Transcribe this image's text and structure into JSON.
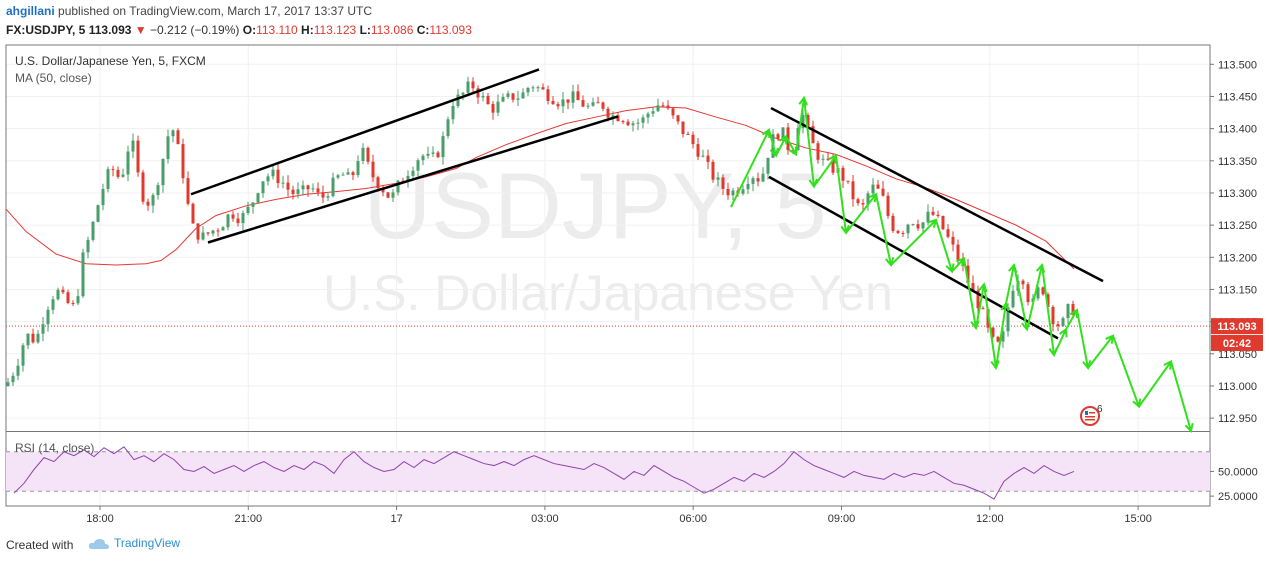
{
  "header": {
    "author": "ahgillani",
    "published": "published on TradingView.com, March 17, 2017 13:37 UTC",
    "symbol": "FX:USDJPY, 5",
    "last": "113.093",
    "change": "−0.212 (−0.19%)",
    "open_label": "O:",
    "open": "113.110",
    "high_label": "H:",
    "high": "113.123",
    "low_label": "L:",
    "low": "113.086",
    "close_label": "C:",
    "close": "113.093"
  },
  "legend": {
    "title": "U.S. Dollar/Japanese Yen, 5, FXCM",
    "ma": "MA (50, close)"
  },
  "watermark": {
    "line1": "USDJPY, 5",
    "line2": "U.S. Dollar/Japanese Yen"
  },
  "price_tag": {
    "value": "113.093",
    "countdown": "02:42"
  },
  "alert_badge": "6",
  "rsi_label": "RSI (14, close)",
  "footer": {
    "created_with": "Created with",
    "brand": "TradingView"
  },
  "colors": {
    "up": "#4a9e6a",
    "down": "#e0392e",
    "ma": "#e53935",
    "rsi": "#8e44ad",
    "channel": "#000000",
    "projection": "#33e01d"
  },
  "chart_data": {
    "type": "candlestick",
    "symbol": "USDJPY",
    "timeframe": "5",
    "x_ticks": [
      "18:00",
      "21:00",
      "17",
      "03:00",
      "06:00",
      "09:00",
      "12:00",
      "15:00"
    ],
    "y_ticks": [
      "113.500",
      "113.450",
      "113.400",
      "113.350",
      "113.300",
      "113.250",
      "113.200",
      "113.150",
      "113.100",
      "113.050",
      "113.000",
      "112.950"
    ],
    "ylim": [
      112.93,
      113.53
    ],
    "last_price": 113.093,
    "ma_period": 50,
    "ma_points": [
      [
        0,
        113.275
      ],
      [
        20,
        113.24
      ],
      [
        50,
        113.205
      ],
      [
        80,
        113.19
      ],
      [
        110,
        113.188
      ],
      [
        140,
        113.19
      ],
      [
        155,
        113.195
      ],
      [
        170,
        113.212
      ],
      [
        190,
        113.245
      ],
      [
        210,
        113.265
      ],
      [
        240,
        113.28
      ],
      [
        270,
        113.29
      ],
      [
        300,
        113.298
      ],
      [
        330,
        113.302
      ],
      [
        360,
        113.307
      ],
      [
        390,
        113.315
      ],
      [
        420,
        113.325
      ],
      [
        450,
        113.338
      ],
      [
        470,
        113.355
      ],
      [
        500,
        113.375
      ],
      [
        530,
        113.392
      ],
      [
        560,
        113.408
      ],
      [
        590,
        113.418
      ],
      [
        620,
        113.428
      ],
      [
        650,
        113.434
      ],
      [
        680,
        113.432
      ],
      [
        710,
        113.418
      ],
      [
        740,
        113.405
      ],
      [
        770,
        113.385
      ],
      [
        800,
        113.37
      ],
      [
        830,
        113.36
      ],
      [
        860,
        113.342
      ],
      [
        890,
        113.322
      ],
      [
        920,
        113.308
      ],
      [
        950,
        113.29
      ],
      [
        980,
        113.27
      ],
      [
        1010,
        113.25
      ],
      [
        1040,
        113.225
      ],
      [
        1068,
        113.182
      ]
    ],
    "close_path": [
      [
        0,
        113.0
      ],
      [
        10,
        113.03
      ],
      [
        20,
        113.08
      ],
      [
        30,
        113.07
      ],
      [
        40,
        113.12
      ],
      [
        50,
        113.15
      ],
      [
        60,
        113.13
      ],
      [
        70,
        113.12
      ],
      [
        75,
        113.19
      ],
      [
        85,
        113.24
      ],
      [
        95,
        113.3
      ],
      [
        105,
        113.34
      ],
      [
        115,
        113.32
      ],
      [
        125,
        113.39
      ],
      [
        135,
        113.3
      ],
      [
        145,
        113.28
      ],
      [
        155,
        113.34
      ],
      [
        165,
        113.41
      ],
      [
        175,
        113.35
      ],
      [
        185,
        113.25
      ],
      [
        195,
        113.23
      ],
      [
        205,
        113.24
      ],
      [
        215,
        113.25
      ],
      [
        225,
        113.27
      ],
      [
        235,
        113.26
      ],
      [
        245,
        113.28
      ],
      [
        255,
        113.32
      ],
      [
        265,
        113.33
      ],
      [
        275,
        113.32
      ],
      [
        285,
        113.3
      ],
      [
        295,
        113.3
      ],
      [
        305,
        113.31
      ],
      [
        315,
        113.29
      ],
      [
        325,
        113.31
      ],
      [
        335,
        113.33
      ],
      [
        345,
        113.32
      ],
      [
        355,
        113.37
      ],
      [
        365,
        113.33
      ],
      [
        375,
        113.31
      ],
      [
        385,
        113.29
      ],
      [
        395,
        113.32
      ],
      [
        405,
        113.34
      ],
      [
        415,
        113.36
      ],
      [
        425,
        113.35
      ],
      [
        435,
        113.37
      ],
      [
        445,
        113.44
      ],
      [
        455,
        113.45
      ],
      [
        465,
        113.47
      ],
      [
        475,
        113.45
      ],
      [
        485,
        113.43
      ],
      [
        495,
        113.44
      ],
      [
        505,
        113.45
      ],
      [
        515,
        113.45
      ],
      [
        525,
        113.47
      ],
      [
        535,
        113.46
      ],
      [
        545,
        113.45
      ],
      [
        555,
        113.44
      ],
      [
        565,
        113.45
      ],
      [
        575,
        113.44
      ],
      [
        585,
        113.43
      ],
      [
        595,
        113.44
      ],
      [
        605,
        113.42
      ],
      [
        615,
        113.42
      ],
      [
        625,
        113.41
      ],
      [
        635,
        113.41
      ],
      [
        645,
        113.43
      ],
      [
        655,
        113.44
      ],
      [
        665,
        113.42
      ],
      [
        675,
        113.4
      ],
      [
        685,
        113.38
      ],
      [
        695,
        113.36
      ],
      [
        705,
        113.33
      ],
      [
        715,
        113.31
      ],
      [
        725,
        113.3
      ],
      [
        735,
        113.31
      ],
      [
        745,
        113.33
      ],
      [
        755,
        113.32
      ],
      [
        765,
        113.38
      ],
      [
        775,
        113.4
      ],
      [
        785,
        113.36
      ],
      [
        795,
        113.43
      ],
      [
        805,
        113.38
      ],
      [
        815,
        113.35
      ],
      [
        825,
        113.34
      ],
      [
        835,
        113.33
      ],
      [
        845,
        113.3
      ],
      [
        855,
        113.27
      ],
      [
        865,
        113.31
      ],
      [
        875,
        113.3
      ],
      [
        885,
        113.25
      ],
      [
        895,
        113.24
      ],
      [
        905,
        113.26
      ],
      [
        915,
        113.25
      ],
      [
        925,
        113.27
      ],
      [
        935,
        113.25
      ],
      [
        945,
        113.22
      ],
      [
        955,
        113.19
      ],
      [
        965,
        113.15
      ],
      [
        975,
        113.12
      ],
      [
        985,
        113.07
      ],
      [
        995,
        113.06
      ],
      [
        1005,
        113.15
      ],
      [
        1015,
        113.18
      ],
      [
        1025,
        113.12
      ],
      [
        1035,
        113.16
      ],
      [
        1045,
        113.11
      ],
      [
        1055,
        113.09
      ],
      [
        1065,
        113.13
      ],
      [
        1072,
        113.093
      ]
    ],
    "annotations": {
      "channel_lines": [
        [
          [
            185,
            113.298
          ],
          [
            533,
            113.492
          ]
        ],
        [
          [
            202,
            113.223
          ],
          [
            612,
            113.419
          ]
        ],
        [
          [
            765,
            113.432
          ],
          [
            1097,
            113.163
          ]
        ],
        [
          [
            763,
            113.325
          ],
          [
            1052,
            113.074
          ]
        ]
      ],
      "projection_path": [
        [
          725,
          113.278
        ],
        [
          763,
          113.398
        ],
        [
          770,
          113.358
        ],
        [
          780,
          113.388
        ],
        [
          790,
          113.36
        ],
        [
          798,
          113.448
        ],
        [
          808,
          113.31
        ],
        [
          830,
          113.358
        ],
        [
          840,
          113.238
        ],
        [
          870,
          113.298
        ],
        [
          885,
          113.188
        ],
        [
          930,
          113.258
        ],
        [
          946,
          113.178
        ],
        [
          958,
          113.198
        ],
        [
          970,
          113.09
        ],
        [
          978,
          113.158
        ],
        [
          990,
          113.028
        ],
        [
          1000,
          113.128
        ],
        [
          1008,
          113.188
        ],
        [
          1021,
          113.088
        ],
        [
          1036,
          113.188
        ],
        [
          1048,
          113.048
        ],
        [
          1060,
          113.088
        ],
        [
          1071,
          113.118
        ],
        [
          1082,
          113.028
        ],
        [
          1107,
          113.078
        ],
        [
          1133,
          112.968
        ],
        [
          1165,
          113.038
        ],
        [
          1185,
          112.93
        ]
      ]
    },
    "rsi": {
      "period": 14,
      "ylim": [
        15,
        90
      ],
      "y_ticks": [
        "50.0000",
        "25.0000"
      ],
      "bands": [
        70,
        30
      ],
      "points": [
        [
          8,
          28
        ],
        [
          18,
          38
        ],
        [
          28,
          52
        ],
        [
          38,
          64
        ],
        [
          48,
          60
        ],
        [
          58,
          70
        ],
        [
          68,
          66
        ],
        [
          78,
          72
        ],
        [
          88,
          65
        ],
        [
          98,
          74
        ],
        [
          108,
          68
        ],
        [
          118,
          75
        ],
        [
          128,
          62
        ],
        [
          138,
          66
        ],
        [
          148,
          60
        ],
        [
          158,
          68
        ],
        [
          168,
          62
        ],
        [
          178,
          52
        ],
        [
          188,
          50
        ],
        [
          198,
          55
        ],
        [
          208,
          48
        ],
        [
          218,
          52
        ],
        [
          228,
          56
        ],
        [
          238,
          50
        ],
        [
          248,
          56
        ],
        [
          258,
          60
        ],
        [
          268,
          54
        ],
        [
          278,
          50
        ],
        [
          288,
          56
        ],
        [
          298,
          52
        ],
        [
          308,
          60
        ],
        [
          318,
          56
        ],
        [
          328,
          48
        ],
        [
          338,
          62
        ],
        [
          348,
          70
        ],
        [
          358,
          60
        ],
        [
          368,
          54
        ],
        [
          378,
          50
        ],
        [
          388,
          52
        ],
        [
          398,
          60
        ],
        [
          408,
          54
        ],
        [
          418,
          62
        ],
        [
          428,
          58
        ],
        [
          438,
          64
        ],
        [
          448,
          70
        ],
        [
          458,
          66
        ],
        [
          468,
          62
        ],
        [
          478,
          58
        ],
        [
          488,
          56
        ],
        [
          498,
          60
        ],
        [
          508,
          56
        ],
        [
          518,
          62
        ],
        [
          528,
          66
        ],
        [
          538,
          62
        ],
        [
          548,
          58
        ],
        [
          558,
          56
        ],
        [
          568,
          54
        ],
        [
          578,
          52
        ],
        [
          588,
          58
        ],
        [
          598,
          54
        ],
        [
          608,
          48
        ],
        [
          618,
          42
        ],
        [
          628,
          50
        ],
        [
          638,
          46
        ],
        [
          648,
          56
        ],
        [
          658,
          50
        ],
        [
          668,
          44
        ],
        [
          678,
          40
        ],
        [
          688,
          34
        ],
        [
          698,
          28
        ],
        [
          708,
          32
        ],
        [
          718,
          38
        ],
        [
          728,
          44
        ],
        [
          738,
          40
        ],
        [
          748,
          48
        ],
        [
          758,
          44
        ],
        [
          768,
          50
        ],
        [
          778,
          58
        ],
        [
          788,
          70
        ],
        [
          798,
          62
        ],
        [
          808,
          56
        ],
        [
          818,
          52
        ],
        [
          828,
          48
        ],
        [
          838,
          44
        ],
        [
          848,
          50
        ],
        [
          858,
          46
        ],
        [
          868,
          44
        ],
        [
          878,
          42
        ],
        [
          888,
          48
        ],
        [
          898,
          44
        ],
        [
          908,
          48
        ],
        [
          918,
          46
        ],
        [
          928,
          50
        ],
        [
          938,
          44
        ],
        [
          948,
          38
        ],
        [
          958,
          36
        ],
        [
          968,
          32
        ],
        [
          978,
          28
        ],
        [
          988,
          22
        ],
        [
          998,
          40
        ],
        [
          1008,
          48
        ],
        [
          1018,
          54
        ],
        [
          1028,
          48
        ],
        [
          1038,
          56
        ],
        [
          1048,
          50
        ],
        [
          1058,
          46
        ],
        [
          1068,
          50
        ]
      ]
    }
  }
}
